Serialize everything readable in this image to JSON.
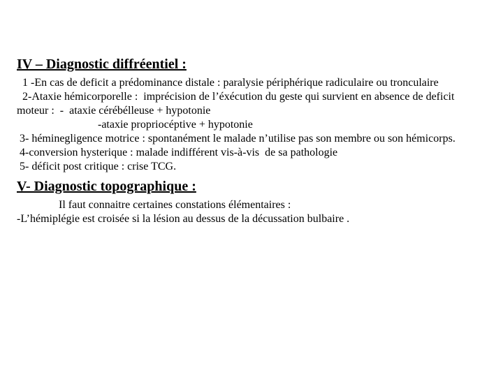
{
  "colors": {
    "text": "#000000",
    "background": "#ffffff"
  },
  "typography": {
    "heading_fontsize_pt": 15,
    "body_fontsize_pt": 12,
    "font_family": "Times New Roman",
    "heading_weight": "bold",
    "heading_underline": true
  },
  "section4": {
    "heading": "IV – Diagnostic diffréentiel :",
    "l1": "  1 -En cas de deficit a prédominance distale : paralysie périphérique radiculaire ou tronculaire",
    "l2": "  2-Ataxie hémicorporelle :  imprécision de l’éxécution du geste qui survient en absence de deficit moteur :  -  ataxie cérébélleuse + hypotonie",
    "l3": "                             -ataxie propriocéptive + hypotonie",
    "l4": " 3- héminegligence motrice : spontanément le malade n’utilise pas son membre ou son hémicorps.",
    "l5": " 4-conversion hysterique : malade indifférent vis-à-vis  de sa pathologie",
    "l6": " 5- déficit post critique : crise TCG."
  },
  "section5": {
    "heading": "V- Diagnostic topographique :",
    "l1": "               Il faut connaitre certaines constations élémentaires :",
    "l2": "-L’hémiplégie est croisée si la lésion au dessus de la décussation bulbaire ."
  }
}
